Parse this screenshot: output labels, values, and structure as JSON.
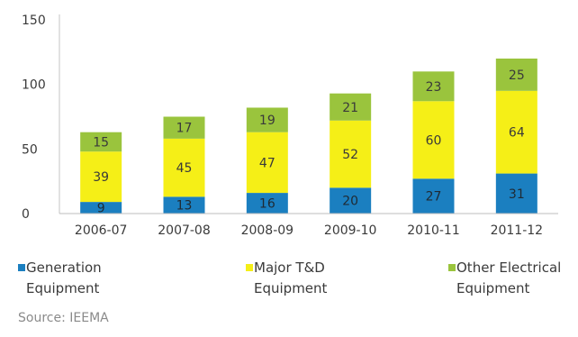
{
  "chart_data": {
    "type": "bar",
    "stacked": true,
    "categories": [
      "2006-07",
      "2007-08",
      "2008-09",
      "2009-10",
      "2010-11",
      "2011-12"
    ],
    "series": [
      {
        "name": "Generation Equipment",
        "name_lines": [
          "Generation",
          "Equipment"
        ],
        "color": "#1b7fc0",
        "values": [
          9,
          13,
          16,
          20,
          27,
          31
        ]
      },
      {
        "name": "Major T&D Equipment",
        "name_lines": [
          "Major T&D",
          "Equipment"
        ],
        "color": "#f5ef17",
        "values": [
          39,
          45,
          47,
          52,
          60,
          64
        ]
      },
      {
        "name": "Other Electrical Equipment",
        "name_lines": [
          "Other Electrical",
          "Equipment"
        ],
        "color": "#9ac43d",
        "values": [
          15,
          17,
          19,
          21,
          23,
          25
        ]
      }
    ],
    "ylim": [
      0,
      150
    ],
    "yticks": [
      0,
      50,
      100,
      150
    ],
    "grid": false,
    "legend_position": "bottom",
    "source": "Source: IEEMA"
  }
}
